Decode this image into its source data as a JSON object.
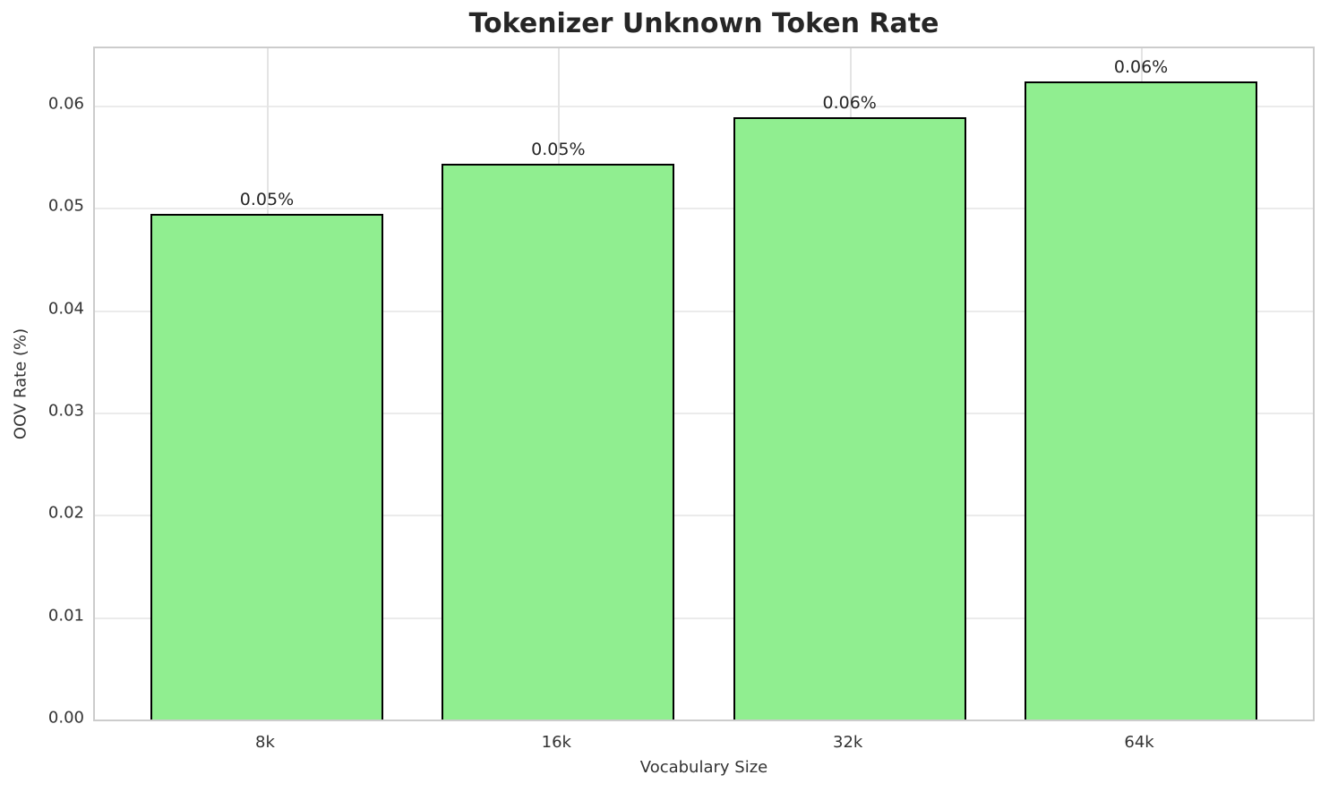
{
  "chart_data": {
    "type": "bar",
    "title": "Tokenizer Unknown Token Rate",
    "xlabel": "Vocabulary Size",
    "ylabel": "OOV Rate (%)",
    "categories": [
      "8k",
      "16k",
      "32k",
      "64k"
    ],
    "values": [
      0.0494,
      0.0543,
      0.0589,
      0.0624
    ],
    "bar_labels": [
      "0.05%",
      "0.05%",
      "0.06%",
      "0.06%"
    ],
    "ylim": [
      0,
      0.0656
    ],
    "xlim": [
      -0.59,
      3.59
    ],
    "bar_width": 0.8,
    "yticks": [
      0,
      0.01,
      0.02,
      0.03,
      0.04,
      0.05,
      0.06
    ],
    "ytick_labels": [
      "0.00",
      "0.01",
      "0.02",
      "0.03",
      "0.04",
      "0.05",
      "0.06"
    ],
    "grid": true,
    "legend": "none",
    "bar_color": "#90EE90",
    "bar_edge_color": "#000000",
    "grid_color": "#e8e8e8",
    "spine_color": "#cccccc",
    "text_color": "#262626"
  }
}
